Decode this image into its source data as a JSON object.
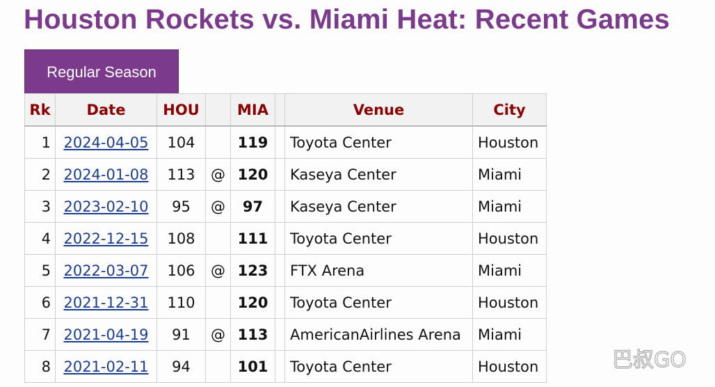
{
  "page": {
    "title": "Houston Rockets vs. Miami Heat: Recent Games"
  },
  "tabs": [
    {
      "label": "Regular Season"
    }
  ],
  "table": {
    "headers": {
      "rk": "Rk",
      "date": "Date",
      "hou": "HOU",
      "at": "",
      "mia": "MIA",
      "spacer": "",
      "venue": "Venue",
      "city": "City"
    },
    "rows": [
      {
        "rk": "1",
        "date": "2024-04-05",
        "hou": "104",
        "at": "",
        "mia": "119",
        "venue": "Toyota Center",
        "city": "Houston"
      },
      {
        "rk": "2",
        "date": "2024-01-08",
        "hou": "113",
        "at": "@",
        "mia": "120",
        "venue": "Kaseya Center",
        "city": "Miami"
      },
      {
        "rk": "3",
        "date": "2023-02-10",
        "hou": "95",
        "at": "@",
        "mia": "97",
        "venue": "Kaseya Center",
        "city": "Miami"
      },
      {
        "rk": "4",
        "date": "2022-12-15",
        "hou": "108",
        "at": "",
        "mia": "111",
        "venue": "Toyota Center",
        "city": "Houston"
      },
      {
        "rk": "5",
        "date": "2022-03-07",
        "hou": "106",
        "at": "@",
        "mia": "123",
        "venue": "FTX Arena",
        "city": "Miami"
      },
      {
        "rk": "6",
        "date": "2021-12-31",
        "hou": "110",
        "at": "",
        "mia": "120",
        "venue": "Toyota Center",
        "city": "Houston"
      },
      {
        "rk": "7",
        "date": "2021-04-19",
        "hou": "91",
        "at": "@",
        "mia": "113",
        "venue": "AmericanAirlines Arena",
        "city": "Miami"
      },
      {
        "rk": "8",
        "date": "2021-02-11",
        "hou": "94",
        "at": "",
        "mia": "101",
        "venue": "Toyota Center",
        "city": "Houston"
      }
    ]
  },
  "watermark": {
    "text": "巴叔GO"
  },
  "colors": {
    "title": "#7b3a8b",
    "tab_bg": "#7b3a8b",
    "header_text": "#8b0000",
    "link": "#1a3d8f"
  }
}
